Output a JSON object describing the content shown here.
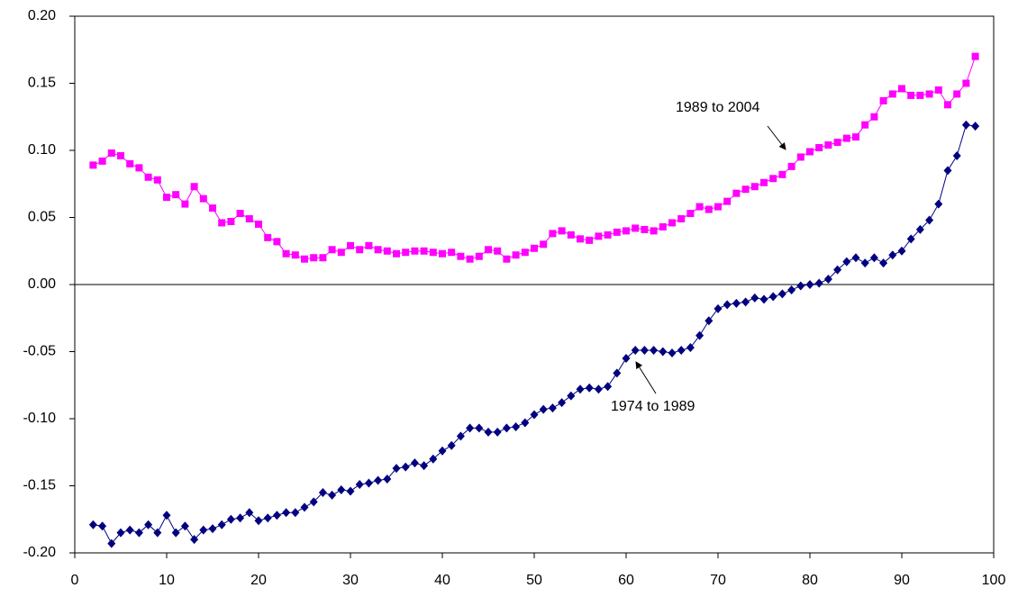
{
  "chart_data": {
    "type": "line",
    "x": [
      2,
      3,
      4,
      5,
      6,
      7,
      8,
      9,
      10,
      11,
      12,
      13,
      14,
      15,
      16,
      17,
      18,
      19,
      20,
      21,
      22,
      23,
      24,
      25,
      26,
      27,
      28,
      29,
      30,
      31,
      32,
      33,
      34,
      35,
      36,
      37,
      38,
      39,
      40,
      41,
      42,
      43,
      44,
      45,
      46,
      47,
      48,
      49,
      50,
      51,
      52,
      53,
      54,
      55,
      56,
      57,
      58,
      59,
      60,
      61,
      62,
      63,
      64,
      65,
      66,
      67,
      68,
      69,
      70,
      71,
      72,
      73,
      74,
      75,
      76,
      77,
      78,
      79,
      80,
      81,
      82,
      83,
      84,
      85,
      86,
      87,
      88,
      89,
      90,
      91,
      92,
      93,
      94,
      95,
      96,
      97,
      98
    ],
    "series": [
      {
        "name": "1989 to 2004",
        "color": "#ff00ff",
        "marker": "square",
        "values": [
          0.089,
          0.092,
          0.098,
          0.096,
          0.09,
          0.087,
          0.08,
          0.078,
          0.065,
          0.067,
          0.06,
          0.073,
          0.064,
          0.057,
          0.046,
          0.047,
          0.053,
          0.049,
          0.045,
          0.035,
          0.032,
          0.023,
          0.022,
          0.019,
          0.02,
          0.02,
          0.026,
          0.024,
          0.029,
          0.026,
          0.029,
          0.026,
          0.025,
          0.023,
          0.024,
          0.025,
          0.025,
          0.024,
          0.023,
          0.024,
          0.021,
          0.019,
          0.021,
          0.026,
          0.025,
          0.019,
          0.022,
          0.024,
          0.027,
          0.03,
          0.038,
          0.04,
          0.037,
          0.034,
          0.033,
          0.036,
          0.037,
          0.039,
          0.04,
          0.042,
          0.041,
          0.04,
          0.043,
          0.046,
          0.049,
          0.053,
          0.058,
          0.056,
          0.058,
          0.062,
          0.068,
          0.071,
          0.073,
          0.076,
          0.079,
          0.082,
          0.088,
          0.095,
          0.099,
          0.102,
          0.104,
          0.106,
          0.109,
          0.11,
          0.119,
          0.125,
          0.137,
          0.142,
          0.146,
          0.141,
          0.141,
          0.142,
          0.145,
          0.134,
          0.142,
          0.15,
          0.17
        ]
      },
      {
        "name": "1974 to 1989",
        "color": "#000080",
        "marker": "diamond",
        "values": [
          -0.179,
          -0.18,
          -0.193,
          -0.185,
          -0.183,
          -0.185,
          -0.179,
          -0.185,
          -0.172,
          -0.185,
          -0.18,
          -0.19,
          -0.183,
          -0.182,
          -0.179,
          -0.175,
          -0.174,
          -0.17,
          -0.176,
          -0.174,
          -0.172,
          -0.17,
          -0.17,
          -0.166,
          -0.162,
          -0.155,
          -0.157,
          -0.153,
          -0.154,
          -0.149,
          -0.148,
          -0.146,
          -0.145,
          -0.137,
          -0.136,
          -0.133,
          -0.135,
          -0.13,
          -0.124,
          -0.12,
          -0.113,
          -0.107,
          -0.107,
          -0.11,
          -0.11,
          -0.107,
          -0.106,
          -0.103,
          -0.097,
          -0.093,
          -0.092,
          -0.088,
          -0.083,
          -0.078,
          -0.077,
          -0.078,
          -0.076,
          -0.066,
          -0.055,
          -0.049,
          -0.049,
          -0.049,
          -0.05,
          -0.051,
          -0.049,
          -0.047,
          -0.038,
          -0.027,
          -0.018,
          -0.015,
          -0.014,
          -0.013,
          -0.01,
          -0.011,
          -0.009,
          -0.007,
          -0.004,
          -0.001,
          0.0,
          0.001,
          0.004,
          0.011,
          0.017,
          0.02,
          0.016,
          0.02,
          0.016,
          0.022,
          0.025,
          0.034,
          0.041,
          0.048,
          0.06,
          0.085,
          0.096,
          0.119,
          0.118
        ]
      }
    ],
    "xlim": [
      0,
      100
    ],
    "xticks": [
      0,
      10,
      20,
      30,
      40,
      50,
      60,
      70,
      80,
      90,
      100
    ],
    "ylim": [
      -0.2,
      0.2
    ],
    "yticks": [
      {
        "value": 0.2,
        "label": "0.20"
      },
      {
        "value": 0.15,
        "label": "0.15"
      },
      {
        "value": 0.1,
        "label": "0.10"
      },
      {
        "value": 0.05,
        "label": "0.05"
      },
      {
        "value": 0,
        "label": "0.00"
      },
      {
        "value": -0.05,
        "label": "-0.05"
      },
      {
        "value": -0.1,
        "label": "-0.10"
      },
      {
        "value": -0.15,
        "label": "-0.15"
      },
      {
        "value": -0.2,
        "label": "-0.20"
      }
    ],
    "grid": false
  }
}
